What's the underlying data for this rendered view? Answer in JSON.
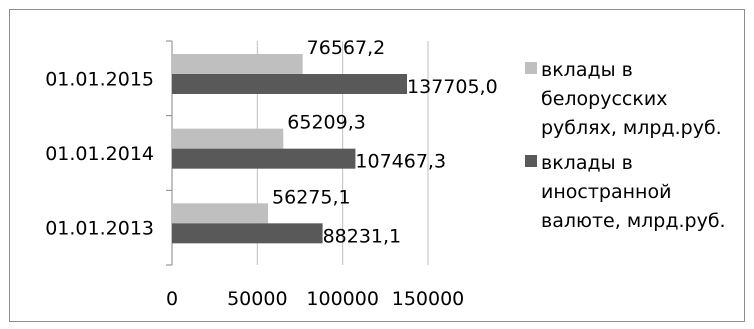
{
  "chart_data": {
    "type": "bar",
    "orientation": "horizontal",
    "categories": [
      "01.01.2013",
      "01.01.2014",
      "01.01.2015"
    ],
    "series": [
      {
        "name": "вклады в белорусских рублях, млрд.руб.",
        "values": [
          56275.1,
          65209.3,
          76567.2
        ],
        "value_labels": [
          "56275,1",
          "65209,3",
          "76567,2"
        ],
        "color": "#bfbfbf"
      },
      {
        "name": "вклады в иностранной валюте, млрд.руб.",
        "values": [
          88231.1,
          107467.3,
          137705.0
        ],
        "value_labels": [
          "88231,1",
          "107467,3",
          "137705,0"
        ],
        "color": "#595959"
      }
    ],
    "xlim": [
      0,
      150000
    ],
    "x_ticks": [
      "0",
      "50000",
      "100000",
      "150000"
    ],
    "title": "",
    "xlabel": "",
    "ylabel": "",
    "grid": true,
    "legend": {
      "placement": "right",
      "entries": [
        {
          "lines": [
            "вклады в",
            "белорусских",
            "рублях, млрд.руб."
          ],
          "color": "#bfbfbf"
        },
        {
          "lines": [
            "вклады в",
            "иностранной",
            "валюте, млрд.руб."
          ],
          "color": "#595959"
        }
      ]
    }
  }
}
